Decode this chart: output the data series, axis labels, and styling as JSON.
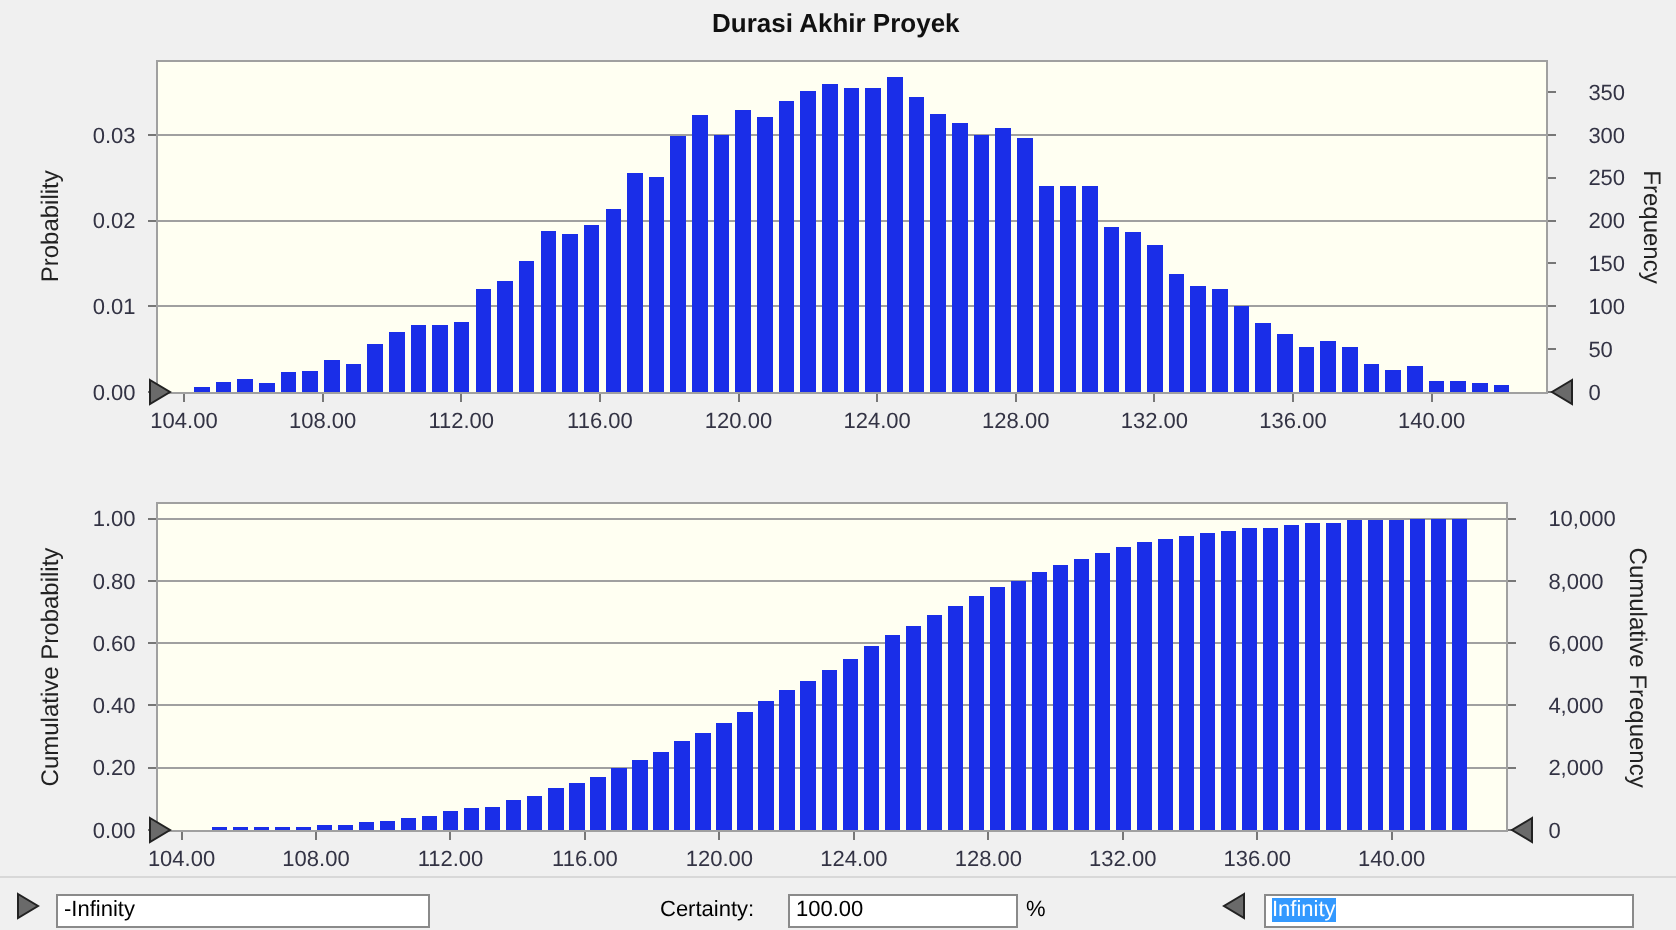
{
  "chart_data": [
    {
      "type": "histogram",
      "title": "Durasi Akhir Proyek",
      "ylabel": "Probability",
      "y2label": "Frequency",
      "bins": [
        104.2,
        104.825,
        105.45,
        106.075,
        106.7,
        107.325,
        107.95,
        108.575,
        109.2,
        109.825,
        110.45,
        111.075,
        111.7,
        112.325,
        112.95,
        113.575,
        114.2,
        114.825,
        115.45,
        116.075,
        116.7,
        117.325,
        117.95,
        118.575,
        119.2,
        119.825,
        120.45,
        121.075,
        121.7,
        122.325,
        122.95,
        123.575,
        124.2,
        124.825,
        125.45,
        126.075,
        126.7,
        127.325,
        127.95,
        128.575,
        129.2,
        129.825,
        130.45,
        131.075,
        131.7,
        132.325,
        132.95,
        133.575,
        134.2,
        134.825,
        135.45,
        136.075,
        136.7,
        137.325,
        137.95,
        138.575,
        139.2,
        139.825,
        140.45,
        141.075,
        141.7,
        142.325
      ],
      "series": [
        {
          "color": "#1a2ee8",
          "axis": "y2",
          "values": [
            6,
            12,
            15,
            11,
            23,
            25,
            37,
            33,
            56,
            70,
            78,
            78,
            82,
            120,
            130,
            153,
            188,
            184,
            195,
            213,
            255,
            251,
            299,
            323,
            300,
            329,
            321,
            339,
            351,
            359,
            355,
            355,
            367,
            344,
            324,
            314,
            300,
            308,
            296,
            240,
            240,
            240,
            193,
            187,
            171,
            138,
            124,
            120,
            100,
            80,
            68,
            52,
            60,
            52,
            33,
            26,
            30,
            13,
            13,
            10,
            8
          ]
        }
      ],
      "xlim": [
        103.25,
        143.3
      ],
      "xticks": [
        {
          "value": 104,
          "label": "104.00"
        },
        {
          "value": 108,
          "label": "108.00"
        },
        {
          "value": 112,
          "label": "112.00"
        },
        {
          "value": 116,
          "label": "116.00"
        },
        {
          "value": 120,
          "label": "120.00"
        },
        {
          "value": 124,
          "label": "124.00"
        },
        {
          "value": 128,
          "label": "128.00"
        },
        {
          "value": 132,
          "label": "132.00"
        },
        {
          "value": 136,
          "label": "136.00"
        },
        {
          "value": 140,
          "label": "140.00"
        }
      ],
      "ylim": [
        0,
        0.0385
      ],
      "yticks": [
        {
          "value": 0,
          "label": "0.00"
        },
        {
          "value": 0.01,
          "label": "0.01"
        },
        {
          "value": 0.02,
          "label": "0.02"
        },
        {
          "value": 0.03,
          "label": "0.03"
        }
      ],
      "y2lim": [
        0,
        385
      ],
      "y2ticks": [
        0,
        50,
        100,
        150,
        200,
        250,
        300,
        350
      ],
      "grid": "y"
    },
    {
      "type": "histogram",
      "ylabel": "Cumulative Probability",
      "y2label": "Cumulative Frequency",
      "bins": [
        104.2,
        104.825,
        105.45,
        106.075,
        106.7,
        107.325,
        107.95,
        108.575,
        109.2,
        109.825,
        110.45,
        111.075,
        111.7,
        112.325,
        112.95,
        113.575,
        114.2,
        114.825,
        115.45,
        116.075,
        116.7,
        117.325,
        117.95,
        118.575,
        119.2,
        119.825,
        120.45,
        121.075,
        121.7,
        122.325,
        122.95,
        123.575,
        124.2,
        124.825,
        125.45,
        126.075,
        126.7,
        127.325,
        127.95,
        128.575,
        129.2,
        129.825,
        130.45,
        131.075,
        131.7,
        132.325,
        132.95,
        133.575,
        134.2,
        134.825,
        135.45,
        136.075,
        136.7,
        137.325,
        137.95,
        138.575,
        139.2,
        139.825,
        140.45,
        141.075,
        141.7,
        142.325
      ],
      "series": [
        {
          "color": "#1a2ee8",
          "axis": "y2",
          "values": [
            0,
            100,
            100,
            100,
            100,
            100,
            150,
            150,
            250,
            300,
            400,
            450,
            600,
            700,
            750,
            950,
            1100,
            1350,
            1500,
            1700,
            2000,
            2250,
            2500,
            2850,
            3100,
            3450,
            3800,
            4150,
            4500,
            4800,
            5150,
            5500,
            5900,
            6250,
            6550,
            6900,
            7200,
            7500,
            7800,
            8000,
            8300,
            8500,
            8700,
            8900,
            9100,
            9250,
            9350,
            9450,
            9550,
            9600,
            9700,
            9700,
            9800,
            9850,
            9850,
            9950,
            9950,
            9950,
            10000,
            10000,
            10000
          ]
        }
      ],
      "xlim": [
        103.3,
        143.4
      ],
      "xticks": [
        {
          "value": 104,
          "label": "104.00"
        },
        {
          "value": 108,
          "label": "108.00"
        },
        {
          "value": 112,
          "label": "112.00"
        },
        {
          "value": 116,
          "label": "116.00"
        },
        {
          "value": 120,
          "label": "120.00"
        },
        {
          "value": 124,
          "label": "124.00"
        },
        {
          "value": 128,
          "label": "128.00"
        },
        {
          "value": 132,
          "label": "132.00"
        },
        {
          "value": 136,
          "label": "136.00"
        },
        {
          "value": 140,
          "label": "140.00"
        }
      ],
      "ylim": [
        0,
        1.047
      ],
      "yticks": [
        {
          "value": 0,
          "label": "0.00"
        },
        {
          "value": 0.2,
          "label": "0.20"
        },
        {
          "value": 0.4,
          "label": "0.40"
        },
        {
          "value": 0.6,
          "label": "0.60"
        },
        {
          "value": 0.8,
          "label": "0.80"
        },
        {
          "value": 1,
          "label": "1.00"
        }
      ],
      "y2lim": [
        0,
        10470
      ],
      "y2ticks": [
        0,
        {
          "value": 2000,
          "label": "2,000"
        },
        {
          "value": 4000,
          "label": "4,000"
        },
        {
          "value": 6000,
          "label": "6,000"
        },
        {
          "value": 8000,
          "label": "8,000"
        },
        {
          "value": 10000,
          "label": "10,000"
        }
      ],
      "grid": "y"
    },
    {
      "type": "other",
      "annotations": [
        "-Infinity",
        "Certainty:",
        "100.00",
        "%",
        "Infinity"
      ]
    }
  ]
}
